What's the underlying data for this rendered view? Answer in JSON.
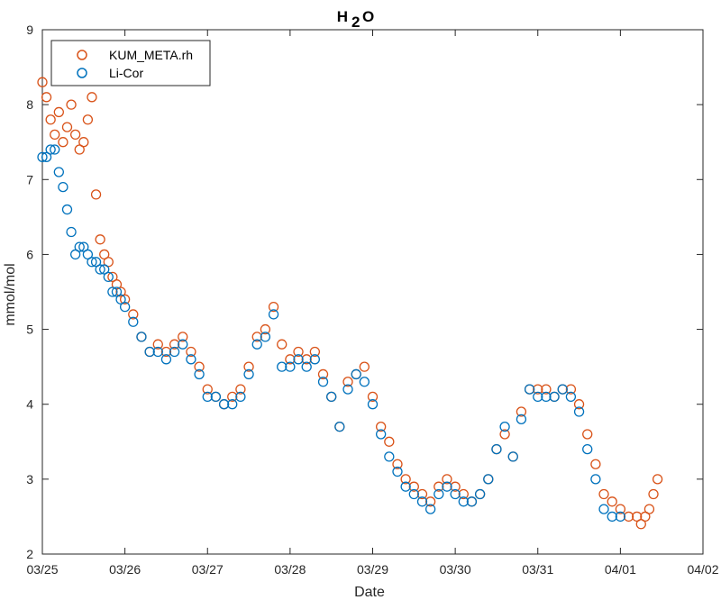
{
  "chart_data": {
    "type": "scatter",
    "title": "H",
    "title_subscript": "2",
    "title_suffix": "O",
    "xlabel": "Date",
    "ylabel": "mmol/mol",
    "xlim": [
      0,
      8
    ],
    "ylim": [
      2,
      9
    ],
    "x_ticks": [
      0,
      1,
      2,
      3,
      4,
      5,
      6,
      7,
      8
    ],
    "x_tick_labels": [
      "03/25",
      "03/26",
      "03/27",
      "03/28",
      "03/29",
      "03/30",
      "03/31",
      "04/01",
      "04/02"
    ],
    "y_ticks": [
      2,
      3,
      4,
      5,
      6,
      7,
      8,
      9
    ],
    "y_tick_labels": [
      "2",
      "3",
      "4",
      "5",
      "6",
      "7",
      "8",
      "9"
    ],
    "x_unit_note": "x values in days since 03/25",
    "grid": false,
    "legend_position": "top-left",
    "marker": "open-circle",
    "series": [
      {
        "name": "KUM_META.rh",
        "color": "#D95319",
        "x": [
          0.0,
          0.05,
          0.1,
          0.15,
          0.2,
          0.25,
          0.3,
          0.35,
          0.4,
          0.45,
          0.5,
          0.55,
          0.6,
          0.65,
          0.7,
          0.75,
          0.8,
          0.85,
          0.9,
          0.95,
          1.0,
          1.1,
          1.2,
          1.3,
          1.4,
          1.5,
          1.6,
          1.7,
          1.8,
          1.9,
          2.0,
          2.1,
          2.2,
          2.3,
          2.4,
          2.5,
          2.6,
          2.7,
          2.8,
          2.9,
          3.0,
          3.1,
          3.2,
          3.3,
          3.4,
          3.5,
          3.6,
          3.7,
          3.8,
          3.9,
          4.0,
          4.1,
          4.2,
          4.3,
          4.4,
          4.5,
          4.6,
          4.7,
          4.8,
          4.9,
          5.0,
          5.1,
          5.2,
          5.3,
          5.4,
          5.5,
          5.6,
          5.7,
          5.8,
          5.9,
          6.0,
          6.1,
          6.2,
          6.3,
          6.4,
          6.5,
          6.6,
          6.7,
          6.8,
          6.9,
          7.0,
          7.1,
          7.2,
          7.25,
          7.3,
          7.35,
          7.4,
          7.45
        ],
        "y": [
          8.3,
          8.1,
          7.8,
          7.6,
          7.9,
          7.5,
          7.7,
          8.0,
          7.6,
          7.4,
          7.5,
          7.8,
          8.1,
          6.8,
          6.2,
          6.0,
          5.9,
          5.7,
          5.6,
          5.5,
          5.4,
          5.2,
          4.9,
          4.7,
          4.8,
          4.7,
          4.8,
          4.9,
          4.7,
          4.5,
          4.2,
          4.1,
          4.0,
          4.1,
          4.2,
          4.5,
          4.9,
          5.0,
          5.3,
          4.8,
          4.6,
          4.7,
          4.6,
          4.7,
          4.4,
          4.1,
          3.7,
          4.3,
          4.4,
          4.5,
          4.1,
          3.7,
          3.5,
          3.2,
          3.0,
          2.9,
          2.8,
          2.7,
          2.9,
          3.0,
          2.9,
          2.8,
          2.7,
          2.8,
          3.0,
          3.4,
          3.6,
          3.3,
          3.9,
          4.2,
          4.2,
          4.2,
          4.1,
          4.2,
          4.2,
          4.0,
          3.6,
          3.2,
          2.8,
          2.7,
          2.6,
          2.5,
          2.5,
          2.4,
          2.5,
          2.6,
          2.8,
          3.0
        ]
      },
      {
        "name": "Li-Cor",
        "color": "#0072BD",
        "x": [
          0.0,
          0.05,
          0.1,
          0.15,
          0.2,
          0.25,
          0.3,
          0.35,
          0.4,
          0.45,
          0.5,
          0.55,
          0.6,
          0.65,
          0.7,
          0.75,
          0.8,
          0.85,
          0.9,
          0.95,
          1.0,
          1.1,
          1.2,
          1.3,
          1.4,
          1.5,
          1.6,
          1.7,
          1.8,
          1.9,
          2.0,
          2.1,
          2.2,
          2.3,
          2.4,
          2.5,
          2.6,
          2.7,
          2.8,
          2.9,
          3.0,
          3.1,
          3.2,
          3.3,
          3.4,
          3.5,
          3.6,
          3.7,
          3.8,
          3.9,
          4.0,
          4.1,
          4.2,
          4.3,
          4.4,
          4.5,
          4.6,
          4.7,
          4.8,
          4.9,
          5.0,
          5.1,
          5.2,
          5.3,
          5.4,
          5.5,
          5.6,
          5.7,
          5.8,
          5.9,
          6.0,
          6.1,
          6.2,
          6.3,
          6.4,
          6.5,
          6.6,
          6.7,
          6.8,
          6.9,
          7.0
        ],
        "y": [
          7.3,
          7.3,
          7.4,
          7.4,
          7.1,
          6.9,
          6.6,
          6.3,
          6.0,
          6.1,
          6.1,
          6.0,
          5.9,
          5.9,
          5.8,
          5.8,
          5.7,
          5.5,
          5.5,
          5.4,
          5.3,
          5.1,
          4.9,
          4.7,
          4.7,
          4.6,
          4.7,
          4.8,
          4.6,
          4.4,
          4.1,
          4.1,
          4.0,
          4.0,
          4.1,
          4.4,
          4.8,
          4.9,
          5.2,
          4.5,
          4.5,
          4.6,
          4.5,
          4.6,
          4.3,
          4.1,
          3.7,
          4.2,
          4.4,
          4.3,
          4.0,
          3.6,
          3.3,
          3.1,
          2.9,
          2.8,
          2.7,
          2.6,
          2.8,
          2.9,
          2.8,
          2.7,
          2.7,
          2.8,
          3.0,
          3.4,
          3.7,
          3.3,
          3.8,
          4.2,
          4.1,
          4.1,
          4.1,
          4.2,
          4.1,
          3.9,
          3.4,
          3.0,
          2.6,
          2.5,
          2.5
        ]
      }
    ]
  }
}
